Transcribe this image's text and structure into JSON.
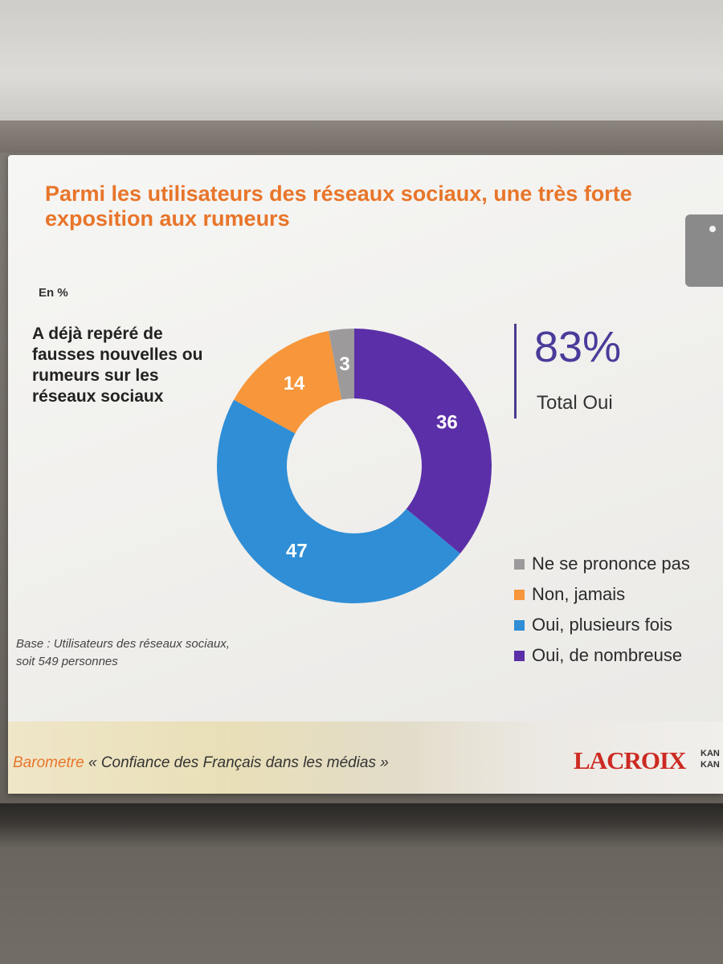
{
  "slide": {
    "title": "Parmi les utilisateurs des réseaux sociaux, une très forte exposition aux rumeurs",
    "unit": "En %",
    "question": "A déjà repéré de fausses nouvelles ou rumeurs sur les réseaux sociaux",
    "total_value": "83%",
    "total_label": "Total Oui",
    "base_note_line1": "Base : Utilisateurs des réseaux sociaux,",
    "base_note_line2": "soit 549 personnes",
    "footer_accent": "Barometre",
    "footer_text": " « Confiance des Français dans les médias »",
    "logo": "LACROIX",
    "logo_side": "KAN KAN"
  },
  "chart_data": {
    "type": "pie",
    "donut": true,
    "categories": [
      "Oui, de nombreuse",
      "Oui, plusieurs fois",
      "Non, jamais",
      "Ne se prononce pas"
    ],
    "values": [
      36,
      47,
      14,
      3
    ],
    "colors": [
      "#5b2fa8",
      "#2f8ed6",
      "#f7963a",
      "#9c9a9b"
    ],
    "legend": [
      {
        "label": "Ne se prononce pas",
        "color": "#9c9a9b"
      },
      {
        "label": "Non, jamais",
        "color": "#f7963a"
      },
      {
        "label": "Oui, plusieurs fois",
        "color": "#2f8ed6"
      },
      {
        "label": "Oui, de nombreuse",
        "color": "#5b2fa8"
      }
    ],
    "legend_position": "bottom-right"
  }
}
